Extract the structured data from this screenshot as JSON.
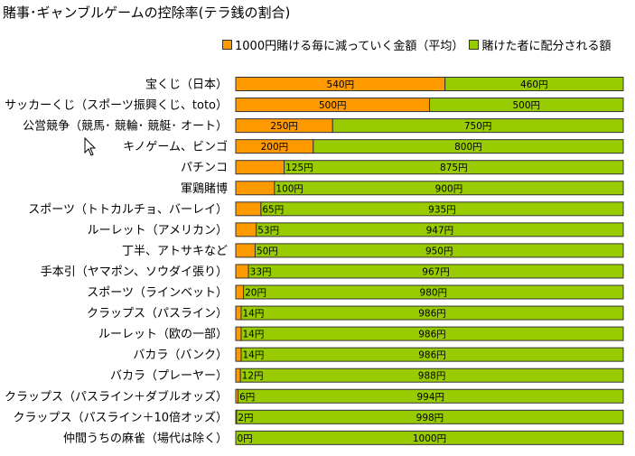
{
  "title": "賭事･ギャンブルゲームの控除率(テラ銭の割合)",
  "colors": {
    "lost": "#ff9900",
    "returned": "#99cc00",
    "border": "#333333"
  },
  "chart_data": {
    "type": "bar",
    "orientation": "horizontal",
    "stacked": true,
    "title": "賭事･ギャンブルゲームの控除率(テラ銭の割合)",
    "xlim": [
      0,
      1000
    ],
    "legend_position": "top-right",
    "categories": [
      "宝くじ（日本）",
      "サッカーくじ（スポーツ振興くじ、toto）",
      "公営競争（競馬･ 競輪･ 競艇･ オート）",
      "キノゲーム、ビンゴ",
      "パチンコ",
      "軍鶏賭博",
      "スポーツ（トトカルチョ、バーレイ）",
      "ルーレット（アメリカン）",
      "丁半、アトサキなど",
      "手本引（ヤマポン、ソウダイ張り）",
      "スポーツ（ラインベット）",
      "クラップス（パスライン）",
      "ルーレット（欧の一部）",
      "バカラ（バンク）",
      "バカラ（プレーヤー）",
      "クラップス（パスライン＋ダブルオッズ）",
      "クラップス（パスライン＋10倍オッズ）",
      "仲間うちの麻雀（場代は除く）"
    ],
    "series": [
      {
        "name": "1000円賭ける毎に減っていく金額（平均）",
        "values": [
          540,
          500,
          250,
          200,
          125,
          100,
          65,
          53,
          50,
          33,
          20,
          14,
          14,
          14,
          12,
          6,
          2,
          0
        ],
        "labels": [
          "540円",
          "500円",
          "250円",
          "200円",
          "125円",
          "100円",
          "65円",
          "53円",
          "50円",
          "33円",
          "20円",
          "14円",
          "14円",
          "14円",
          "12円",
          "6円",
          "2円",
          "0円"
        ]
      },
      {
        "name": "賭けた者に配分される額",
        "values": [
          460,
          500,
          750,
          800,
          875,
          900,
          935,
          947,
          950,
          967,
          980,
          986,
          986,
          986,
          988,
          994,
          998,
          1000
        ],
        "labels": [
          "460円",
          "500円",
          "750円",
          "800円",
          "875円",
          "900円",
          "935円",
          "947円",
          "950円",
          "967円",
          "980円",
          "986円",
          "986円",
          "986円",
          "988円",
          "994円",
          "998円",
          "1000円"
        ]
      }
    ]
  }
}
